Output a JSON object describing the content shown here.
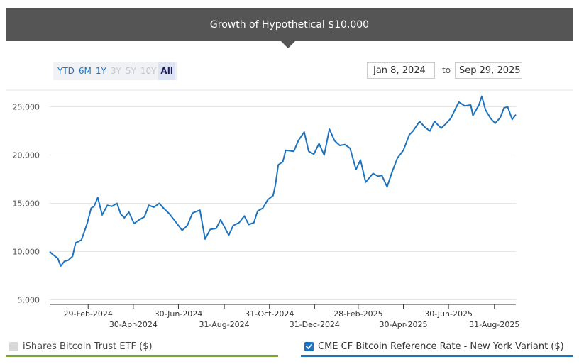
{
  "header": {
    "title": "Growth of Hypothetical $10,000"
  },
  "ranges": [
    {
      "label": "YTD",
      "state": "enabled"
    },
    {
      "label": "6M",
      "state": "enabled"
    },
    {
      "label": "1Y",
      "state": "enabled"
    },
    {
      "label": "3Y",
      "state": "disabled"
    },
    {
      "label": "5Y",
      "state": "disabled"
    },
    {
      "label": "10Y",
      "state": "disabled"
    },
    {
      "label": "All",
      "state": "selected"
    }
  ],
  "date_range": {
    "from": "Jan 8, 2024",
    "separator": "to",
    "to": "Sep 29, 2025"
  },
  "legend": [
    {
      "label": "iShares Bitcoin Trust ETF ($)",
      "checked": false,
      "color": "#76a834"
    },
    {
      "label": "CME CF Bitcoin Reference Rate - New York Variant ($)",
      "checked": true,
      "color": "#1e73be"
    }
  ],
  "icons": {
    "checkbox_checked": "check-icon"
  },
  "chart_data": {
    "type": "line",
    "x_start": "2024-01-08",
    "x_end": "2025-09-29",
    "ylim": [
      5000,
      27000
    ],
    "y_ticks": [
      5000,
      10000,
      15000,
      20000,
      25000
    ],
    "y_tick_labels": [
      "5,000",
      "10,000",
      "15,000",
      "20,000",
      "25,000"
    ],
    "x_ticks": [
      {
        "date": "2024-02-29",
        "label": "29-Feb-2024"
      },
      {
        "date": "2024-04-30",
        "label": "30-Apr-2024"
      },
      {
        "date": "2024-06-30",
        "label": "30-Jun-2024"
      },
      {
        "date": "2024-08-31",
        "label": "31-Aug-2024"
      },
      {
        "date": "2024-10-31",
        "label": "31-Oct-2024"
      },
      {
        "date": "2024-12-31",
        "label": "31-Dec-2024"
      },
      {
        "date": "2025-02-28",
        "label": "28-Feb-2025"
      },
      {
        "date": "2025-04-30",
        "label": "30-Apr-2025"
      },
      {
        "date": "2025-06-30",
        "label": "30-Jun-2025"
      },
      {
        "date": "2025-08-31",
        "label": "31-Aug-2025"
      }
    ],
    "grid": true,
    "legend_position": "bottom",
    "series": [
      {
        "name": "CME CF Bitcoin Reference Rate - New York Variant ($)",
        "color": "#1e73be",
        "points": [
          [
            "2024-01-08",
            10000
          ],
          [
            "2024-01-12",
            9700
          ],
          [
            "2024-01-19",
            9300
          ],
          [
            "2024-01-23",
            8500
          ],
          [
            "2024-01-28",
            9000
          ],
          [
            "2024-02-02",
            9100
          ],
          [
            "2024-02-08",
            9500
          ],
          [
            "2024-02-12",
            10900
          ],
          [
            "2024-02-20",
            11200
          ],
          [
            "2024-02-28",
            13000
          ],
          [
            "2024-03-04",
            14500
          ],
          [
            "2024-03-08",
            14700
          ],
          [
            "2024-03-13",
            15600
          ],
          [
            "2024-03-19",
            13800
          ],
          [
            "2024-03-26",
            14800
          ],
          [
            "2024-04-01",
            14700
          ],
          [
            "2024-04-08",
            15000
          ],
          [
            "2024-04-13",
            13900
          ],
          [
            "2024-04-18",
            13500
          ],
          [
            "2024-04-24",
            14100
          ],
          [
            "2024-05-01",
            12900
          ],
          [
            "2024-05-08",
            13300
          ],
          [
            "2024-05-15",
            13600
          ],
          [
            "2024-05-21",
            14800
          ],
          [
            "2024-05-28",
            14600
          ],
          [
            "2024-06-04",
            15000
          ],
          [
            "2024-06-10",
            14500
          ],
          [
            "2024-06-18",
            13900
          ],
          [
            "2024-06-24",
            13300
          ],
          [
            "2024-07-05",
            12200
          ],
          [
            "2024-07-12",
            12700
          ],
          [
            "2024-07-19",
            14000
          ],
          [
            "2024-07-29",
            14300
          ],
          [
            "2024-08-05",
            11300
          ],
          [
            "2024-08-12",
            12300
          ],
          [
            "2024-08-20",
            12400
          ],
          [
            "2024-08-26",
            13300
          ],
          [
            "2024-09-06",
            11700
          ],
          [
            "2024-09-12",
            12700
          ],
          [
            "2024-09-20",
            13000
          ],
          [
            "2024-09-27",
            13700
          ],
          [
            "2024-10-03",
            12800
          ],
          [
            "2024-10-10",
            13000
          ],
          [
            "2024-10-15",
            14200
          ],
          [
            "2024-10-22",
            14500
          ],
          [
            "2024-10-29",
            15400
          ],
          [
            "2024-11-05",
            15800
          ],
          [
            "2024-11-08",
            16900
          ],
          [
            "2024-11-12",
            19000
          ],
          [
            "2024-11-18",
            19300
          ],
          [
            "2024-11-22",
            20500
          ],
          [
            "2024-12-03",
            20400
          ],
          [
            "2024-12-09",
            21500
          ],
          [
            "2024-12-17",
            22400
          ],
          [
            "2024-12-23",
            20400
          ],
          [
            "2024-12-30",
            20100
          ],
          [
            "2025-01-06",
            21200
          ],
          [
            "2025-01-13",
            20000
          ],
          [
            "2025-01-20",
            22700
          ],
          [
            "2025-01-27",
            21500
          ],
          [
            "2025-02-03",
            21000
          ],
          [
            "2025-02-10",
            21100
          ],
          [
            "2025-02-17",
            20700
          ],
          [
            "2025-02-25",
            18500
          ],
          [
            "2025-03-03",
            19500
          ],
          [
            "2025-03-10",
            17200
          ],
          [
            "2025-03-20",
            18100
          ],
          [
            "2025-03-27",
            17800
          ],
          [
            "2025-04-01",
            17900
          ],
          [
            "2025-04-08",
            16700
          ],
          [
            "2025-04-14",
            18100
          ],
          [
            "2025-04-22",
            19700
          ],
          [
            "2025-04-30",
            20500
          ],
          [
            "2025-05-08",
            22100
          ],
          [
            "2025-05-13",
            22500
          ],
          [
            "2025-05-22",
            23500
          ],
          [
            "2025-05-29",
            22900
          ],
          [
            "2025-06-05",
            22500
          ],
          [
            "2025-06-11",
            23500
          ],
          [
            "2025-06-20",
            22800
          ],
          [
            "2025-06-27",
            23300
          ],
          [
            "2025-07-03",
            23800
          ],
          [
            "2025-07-10",
            24900
          ],
          [
            "2025-07-14",
            25500
          ],
          [
            "2025-07-22",
            25100
          ],
          [
            "2025-07-30",
            25200
          ],
          [
            "2025-08-02",
            24100
          ],
          [
            "2025-08-10",
            25200
          ],
          [
            "2025-08-14",
            26100
          ],
          [
            "2025-08-19",
            24700
          ],
          [
            "2025-08-26",
            23800
          ],
          [
            "2025-09-01",
            23300
          ],
          [
            "2025-09-08",
            23900
          ],
          [
            "2025-09-13",
            24900
          ],
          [
            "2025-09-18",
            25000
          ],
          [
            "2025-09-24",
            23700
          ],
          [
            "2025-09-29",
            24200
          ]
        ]
      }
    ]
  }
}
